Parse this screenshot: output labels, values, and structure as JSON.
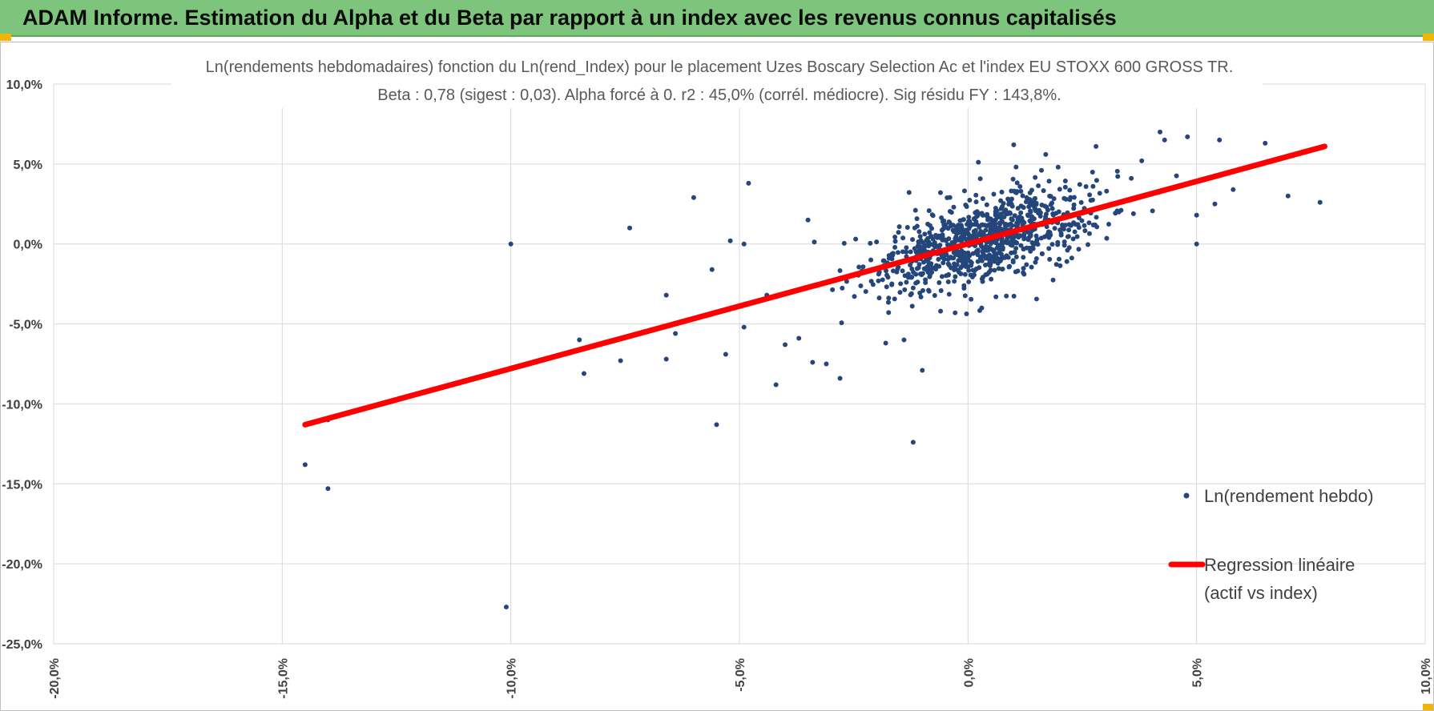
{
  "banner": {
    "title": "ADAM Informe. Estimation du Alpha et du Beta par rapport à un index avec les revenus connus capitalisés",
    "background": "#7dc47d",
    "corner_color": "#f2b600"
  },
  "chart_data": {
    "type": "scatter",
    "title_line1": "Ln(rendements hebdomadaires) fonction du Ln(rend_Index) pour le placement Uzes Boscary Selection Ac et l'index EU STOXX 600 GROSS TR.",
    "title_line2": "Beta : 0,78 (sigest : 0,03). Alpha forcé à 0. r2 : 45,0% (corrél. médiocre). Sig résidu FY : 143,8%.",
    "xlim": [
      -20,
      10
    ],
    "ylim": [
      -25,
      10
    ],
    "x_ticks": [
      -20,
      -15,
      -10,
      -5,
      0,
      5,
      10
    ],
    "y_ticks": [
      -25,
      -20,
      -15,
      -10,
      -5,
      0,
      5,
      10
    ],
    "x_tick_labels": [
      "-20,0%",
      "-15,0%",
      "-10,0%",
      "-5,0%",
      "0,0%",
      "5,0%",
      "10,0%"
    ],
    "y_tick_labels": [
      "-25,0%",
      "-20,0%",
      "-15,0%",
      "-10,0%",
      "-5,0%",
      "0,0%",
      "5,0%",
      "10,0%"
    ],
    "grid": true,
    "legend_position": "bottom-right",
    "series": [
      {
        "name": "Ln(rendement hebdo)",
        "kind": "scatter",
        "color": "#24467a",
        "points": [
          [
            -14.5,
            -13.8
          ],
          [
            -14.0,
            -15.3
          ],
          [
            -14.0,
            -11.0
          ],
          [
            -10.0,
            0.0
          ],
          [
            -10.1,
            -22.7
          ],
          [
            -8.5,
            -6.0
          ],
          [
            -8.4,
            -8.1
          ],
          [
            -7.6,
            -7.3
          ],
          [
            -7.4,
            1.0
          ],
          [
            -6.6,
            -3.2
          ],
          [
            -6.6,
            -7.2
          ],
          [
            -6.4,
            -5.6
          ],
          [
            -6.0,
            2.9
          ],
          [
            -5.6,
            -1.6
          ],
          [
            -5.5,
            -11.3
          ],
          [
            -5.3,
            -6.9
          ],
          [
            -5.2,
            0.2
          ],
          [
            -4.9,
            -5.2
          ],
          [
            -4.8,
            3.8
          ],
          [
            -4.4,
            -3.2
          ],
          [
            -4.2,
            -8.8
          ],
          [
            -4.0,
            -6.3
          ],
          [
            -3.7,
            -5.9
          ],
          [
            -3.4,
            -7.4
          ],
          [
            -3.1,
            -7.5
          ],
          [
            -2.8,
            -8.4
          ],
          [
            -4.9,
            0.0
          ],
          [
            -3.5,
            1.5
          ],
          [
            -1.8,
            -6.2
          ],
          [
            -1.4,
            -6.0
          ],
          [
            -1.2,
            -12.4
          ],
          [
            -1.0,
            -7.9
          ],
          [
            -0.6,
            -4.2
          ],
          [
            0.3,
            -4.0
          ],
          [
            1.0,
            6.2
          ],
          [
            1.7,
            5.6
          ],
          [
            2.8,
            6.1
          ],
          [
            4.2,
            7.0
          ],
          [
            4.3,
            6.5
          ],
          [
            4.8,
            6.7
          ],
          [
            5.0,
            1.8
          ],
          [
            5.0,
            0.0
          ],
          [
            5.4,
            2.5
          ],
          [
            5.5,
            6.5
          ],
          [
            5.8,
            3.4
          ],
          [
            6.5,
            6.3
          ],
          [
            7.0,
            3.0
          ],
          [
            7.7,
            2.6
          ],
          [
            3.8,
            5.2
          ],
          [
            3.3,
            2.0
          ]
        ]
      },
      {
        "name": "Regression linéaire",
        "name_line2": "(actif vs index)",
        "kind": "line",
        "color": "#ff0000",
        "points": [
          [
            -14.5,
            -11.3
          ],
          [
            7.8,
            6.1
          ]
        ]
      }
    ]
  }
}
